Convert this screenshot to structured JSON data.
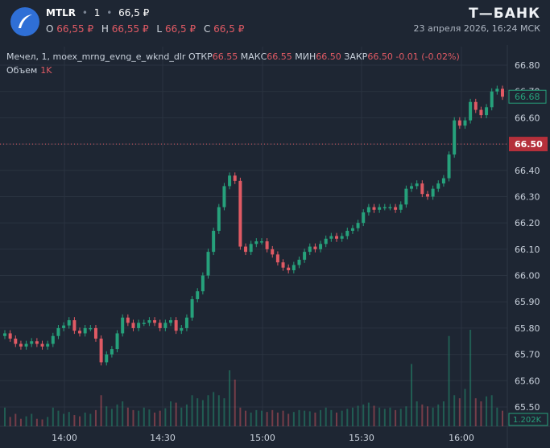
{
  "header": {
    "symbol": "MTLR",
    "interval": "1",
    "price": "66,5 ₽",
    "ohlc": [
      {
        "key": "O",
        "value": "66,55 ₽"
      },
      {
        "key": "H",
        "value": "66,55 ₽"
      },
      {
        "key": "L",
        "value": "66,5 ₽"
      },
      {
        "key": "C",
        "value": "66,5 ₽"
      }
    ],
    "brand": "Т—БАНК",
    "datetime": "23 апреля 2026, 16:24 МСК"
  },
  "legend": {
    "name": "Мечел, 1, moex_mrng_evng_e_wknd_dlr",
    "open_label": "ОТКР",
    "open": "66.55",
    "high_label": "МАКС",
    "high": "66.55",
    "low_label": "МИН",
    "low": "66.50",
    "close_label": "ЗАКР",
    "close": "66.50",
    "change": "-0.01 (-0.02%)",
    "volume_label": "Объем",
    "volume": "1K"
  },
  "colors": {
    "background": "#1e2633",
    "up": "#26a17b",
    "down": "#e05a64",
    "grid": "#2a3340",
    "axis_text": "#c9d1dc",
    "price_tag": "#b5303b"
  },
  "chart_data": {
    "type": "candlestick",
    "x_ticks": [
      "14:00",
      "14:30",
      "15:00",
      "15:30",
      "16:00"
    ],
    "y_ticks": [
      66.8,
      66.7,
      66.6,
      66.5,
      66.4,
      66.3,
      66.2,
      66.1,
      66.0,
      65.9,
      65.8,
      65.7,
      65.6,
      65.5
    ],
    "ylim": [
      65.45,
      66.85
    ],
    "current_price": "66.50",
    "marker_price": "66.68",
    "volume_label": "1.202K",
    "closes": [
      65.78,
      65.76,
      65.74,
      65.73,
      65.74,
      65.75,
      65.74,
      65.73,
      65.74,
      65.77,
      65.8,
      65.81,
      65.83,
      65.79,
      65.78,
      65.8,
      65.8,
      65.76,
      65.67,
      65.7,
      65.72,
      65.78,
      65.84,
      65.82,
      65.8,
      65.82,
      65.82,
      65.83,
      65.82,
      65.8,
      65.82,
      65.83,
      65.79,
      65.8,
      65.84,
      65.91,
      65.94,
      66.0,
      66.09,
      66.17,
      66.26,
      66.34,
      66.38,
      66.36,
      66.11,
      66.09,
      66.12,
      66.13,
      66.13,
      66.1,
      66.08,
      66.05,
      66.03,
      66.02,
      66.04,
      66.06,
      66.09,
      66.11,
      66.1,
      66.12,
      66.14,
      66.15,
      66.14,
      66.15,
      66.17,
      66.18,
      66.2,
      66.24,
      66.26,
      66.25,
      66.26,
      66.26,
      66.26,
      66.25,
      66.27,
      66.33,
      66.34,
      66.35,
      66.31,
      66.3,
      66.33,
      66.35,
      66.37,
      66.46,
      66.59,
      66.57,
      66.59,
      66.66,
      66.63,
      66.61,
      66.64,
      66.7,
      66.71,
      66.68
    ],
    "volumes": [
      300,
      150,
      200,
      120,
      160,
      200,
      120,
      110,
      150,
      300,
      250,
      200,
      230,
      180,
      160,
      220,
      200,
      260,
      500,
      320,
      280,
      350,
      400,
      300,
      260,
      250,
      300,
      270,
      220,
      250,
      290,
      400,
      380,
      300,
      350,
      500,
      450,
      420,
      500,
      550,
      500,
      450,
      900,
      750,
      300,
      250,
      220,
      260,
      250,
      230,
      260,
      220,
      250,
      200,
      230,
      260,
      250,
      240,
      220,
      260,
      300,
      260,
      220,
      250,
      280,
      300,
      330,
      350,
      380,
      330,
      300,
      280,
      300,
      260,
      280,
      320,
      1000,
      400,
      350,
      320,
      300,
      350,
      400,
      1450,
      500,
      450,
      600,
      1550,
      450,
      400,
      480,
      500,
      300,
      250
    ]
  }
}
